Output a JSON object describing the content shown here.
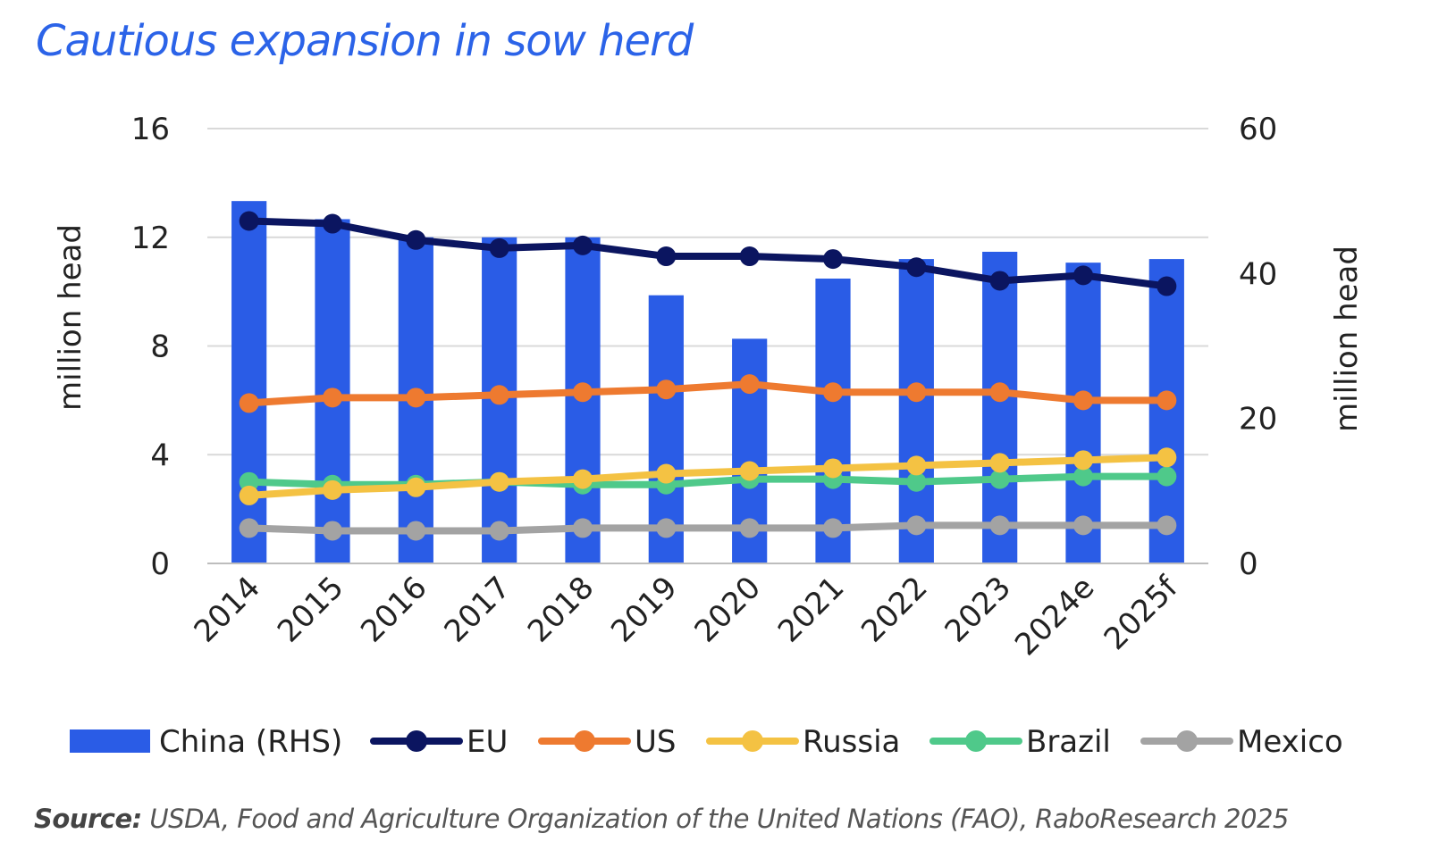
{
  "chart_data": {
    "type": "bar",
    "title": "Cautious expansion in sow herd",
    "categories": [
      "2014",
      "2015",
      "2016",
      "2017",
      "2018",
      "2019",
      "2020",
      "2021",
      "2022",
      "2023",
      "2024e",
      "2025f"
    ],
    "y_left": {
      "label": "million head",
      "min": 0,
      "max": 16,
      "ticks": [
        "0",
        "4",
        "8",
        "12",
        "16"
      ],
      "tick_values": [
        0,
        4,
        8,
        12,
        16
      ]
    },
    "y_right": {
      "label": "million head",
      "min": 0,
      "max": 60,
      "ticks": [
        "0",
        "20",
        "40",
        "60"
      ],
      "tick_values": [
        0,
        20,
        40,
        60
      ]
    },
    "grid": true,
    "legend_position": "bottom",
    "bar_series": {
      "name": "China (RHS)",
      "axis": "right",
      "color": "#2a5ce6",
      "values": [
        50,
        47.5,
        45,
        45,
        45,
        37,
        31,
        39.3,
        42,
        43,
        41.5,
        42
      ]
    },
    "line_series": [
      {
        "name": "EU",
        "axis": "left",
        "color": "#0b1560",
        "values": [
          12.6,
          12.5,
          11.9,
          11.6,
          11.7,
          11.3,
          11.3,
          11.2,
          10.9,
          10.4,
          10.6,
          10.2
        ]
      },
      {
        "name": "US",
        "axis": "left",
        "color": "#ee7a30",
        "values": [
          5.9,
          6.1,
          6.1,
          6.2,
          6.3,
          6.4,
          6.6,
          6.3,
          6.3,
          6.3,
          6.0,
          6.0
        ]
      },
      {
        "name": "Russia",
        "axis": "left",
        "color": "#f4c243",
        "values": [
          2.5,
          2.7,
          2.8,
          3.0,
          3.1,
          3.3,
          3.4,
          3.5,
          3.6,
          3.7,
          3.8,
          3.9
        ]
      },
      {
        "name": "Brazil",
        "axis": "left",
        "color": "#4fc98a",
        "values": [
          3.0,
          2.9,
          2.9,
          3.0,
          2.9,
          2.9,
          3.1,
          3.1,
          3.0,
          3.1,
          3.2,
          3.2
        ]
      },
      {
        "name": "Mexico",
        "axis": "left",
        "color": "#a3a3a3",
        "values": [
          1.3,
          1.2,
          1.2,
          1.2,
          1.3,
          1.3,
          1.3,
          1.3,
          1.4,
          1.4,
          1.4,
          1.4
        ]
      }
    ]
  },
  "source": {
    "label": "Source:",
    "text": " USDA, Food and Agriculture Organization of the United Nations (FAO), RaboResearch 2025"
  }
}
